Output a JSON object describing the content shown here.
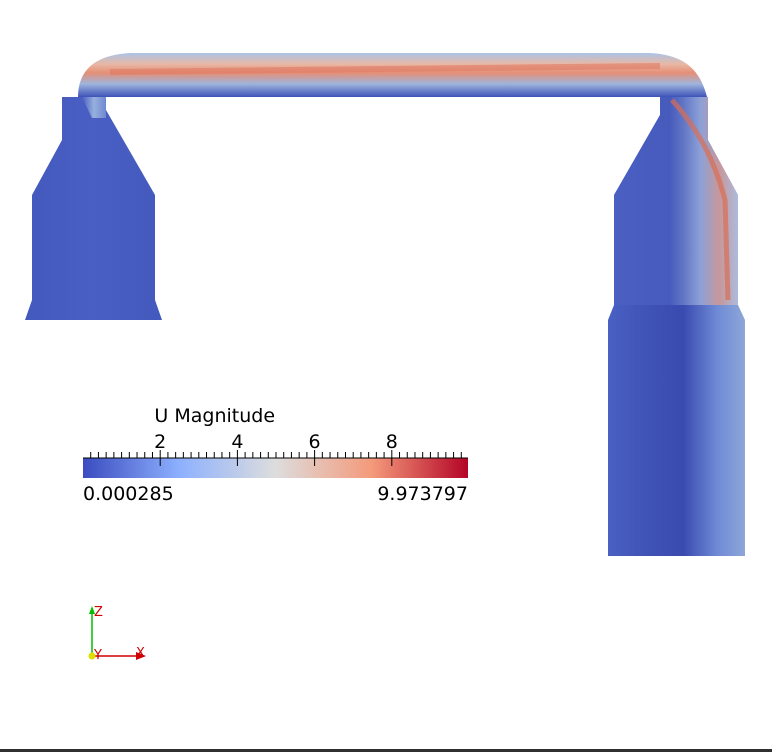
{
  "colorbar": {
    "title": "U Magnitude",
    "min_label": "0.000285",
    "max_label": "9.973797",
    "range": [
      0.000285,
      9.973797
    ],
    "major_ticks": [
      {
        "value": 2,
        "label": "2"
      },
      {
        "value": 4,
        "label": "4"
      },
      {
        "value": 6,
        "label": "6"
      },
      {
        "value": 8,
        "label": "8"
      }
    ],
    "colors": [
      "#3b4cc0",
      "#8db0fe",
      "#dddddd",
      "#f49a7b",
      "#b40426"
    ]
  },
  "axes": {
    "z_label": "Z",
    "x_label": "X",
    "y_label": "Y",
    "z_color": "#00c000",
    "x_color": "#d00000",
    "y_color": "#e0e000"
  }
}
